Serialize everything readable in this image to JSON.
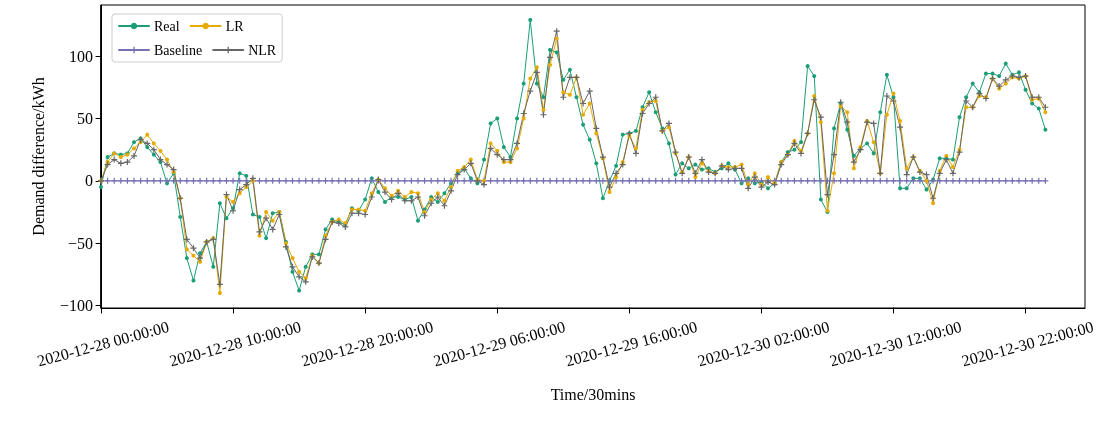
{
  "chart_data": {
    "type": "line",
    "xlabel": "Time/30mins",
    "ylabel": "Demand difference/kWh",
    "x": [
      "2020-12-28T00:00",
      "2020-12-28T00:30",
      "2020-12-28T01:00",
      "2020-12-28T01:30",
      "2020-12-28T02:00",
      "2020-12-28T02:30",
      "2020-12-28T03:00",
      "2020-12-28T03:30",
      "2020-12-28T04:00",
      "2020-12-28T04:30",
      "2020-12-28T05:00",
      "2020-12-28T05:30",
      "2020-12-28T06:00",
      "2020-12-28T06:30",
      "2020-12-28T07:00",
      "2020-12-28T07:30",
      "2020-12-28T08:00",
      "2020-12-28T08:30",
      "2020-12-28T09:00",
      "2020-12-28T09:30",
      "2020-12-28T10:00",
      "2020-12-28T10:30",
      "2020-12-28T11:00",
      "2020-12-28T11:30",
      "2020-12-28T12:00",
      "2020-12-28T12:30",
      "2020-12-28T13:00",
      "2020-12-28T13:30",
      "2020-12-28T14:00",
      "2020-12-28T14:30",
      "2020-12-28T15:00",
      "2020-12-28T15:30",
      "2020-12-28T16:00",
      "2020-12-28T16:30",
      "2020-12-28T17:00",
      "2020-12-28T17:30",
      "2020-12-28T18:00",
      "2020-12-28T18:30",
      "2020-12-28T19:00",
      "2020-12-28T19:30",
      "2020-12-28T20:00",
      "2020-12-28T20:30",
      "2020-12-28T21:00",
      "2020-12-28T21:30",
      "2020-12-28T22:00",
      "2020-12-28T22:30",
      "2020-12-28T23:00",
      "2020-12-28T23:30",
      "2020-12-29T00:00",
      "2020-12-29T00:30",
      "2020-12-29T01:00",
      "2020-12-29T01:30",
      "2020-12-29T02:00",
      "2020-12-29T02:30",
      "2020-12-29T03:00",
      "2020-12-29T03:30",
      "2020-12-29T04:00",
      "2020-12-29T04:30",
      "2020-12-29T05:00",
      "2020-12-29T05:30",
      "2020-12-29T06:00",
      "2020-12-29T06:30",
      "2020-12-29T07:00",
      "2020-12-29T07:30",
      "2020-12-29T08:00",
      "2020-12-29T08:30",
      "2020-12-29T09:00",
      "2020-12-29T09:30",
      "2020-12-29T10:00",
      "2020-12-29T10:30",
      "2020-12-29T11:00",
      "2020-12-29T11:30",
      "2020-12-29T12:00",
      "2020-12-29T12:30",
      "2020-12-29T13:00",
      "2020-12-29T13:30",
      "2020-12-29T14:00",
      "2020-12-29T14:30",
      "2020-12-29T15:00",
      "2020-12-29T15:30",
      "2020-12-29T16:00",
      "2020-12-29T16:30",
      "2020-12-29T17:00",
      "2020-12-29T17:30",
      "2020-12-29T18:00",
      "2020-12-29T18:30",
      "2020-12-29T19:00",
      "2020-12-29T19:30",
      "2020-12-29T20:00",
      "2020-12-29T20:30",
      "2020-12-29T21:00",
      "2020-12-29T21:30",
      "2020-12-29T22:00",
      "2020-12-29T22:30",
      "2020-12-29T23:00",
      "2020-12-29T23:30",
      "2020-12-30T00:00",
      "2020-12-30T00:30",
      "2020-12-30T01:00",
      "2020-12-30T01:30",
      "2020-12-30T02:00",
      "2020-12-30T02:30",
      "2020-12-30T03:00",
      "2020-12-30T03:30",
      "2020-12-30T04:00",
      "2020-12-30T04:30",
      "2020-12-30T05:00",
      "2020-12-30T05:30",
      "2020-12-30T06:00",
      "2020-12-30T06:30",
      "2020-12-30T07:00",
      "2020-12-30T07:30",
      "2020-12-30T08:00",
      "2020-12-30T08:30",
      "2020-12-30T09:00",
      "2020-12-30T09:30",
      "2020-12-30T10:00",
      "2020-12-30T10:30",
      "2020-12-30T11:00",
      "2020-12-30T11:30",
      "2020-12-30T12:00",
      "2020-12-30T12:30",
      "2020-12-30T13:00",
      "2020-12-30T13:30",
      "2020-12-30T14:00",
      "2020-12-30T14:30",
      "2020-12-30T15:00",
      "2020-12-30T15:30",
      "2020-12-30T16:00",
      "2020-12-30T16:30",
      "2020-12-30T17:00",
      "2020-12-30T17:30",
      "2020-12-30T18:00",
      "2020-12-30T18:30",
      "2020-12-30T19:00",
      "2020-12-30T19:30",
      "2020-12-30T20:00",
      "2020-12-30T20:30",
      "2020-12-30T21:00",
      "2020-12-30T21:30",
      "2020-12-30T22:00",
      "2020-12-30T22:30",
      "2020-12-30T23:00",
      "2020-12-30T23:30"
    ],
    "series": [
      {
        "name": "Real",
        "color": "#1b9e77",
        "marker": "circle",
        "values": [
          -5,
          19,
          22,
          21,
          22,
          31,
          34,
          27,
          21,
          15,
          -2,
          6,
          -29,
          -62,
          -80,
          -58,
          -49,
          -69,
          -18,
          -30,
          -22,
          6,
          4,
          -27,
          -29,
          -46,
          -26,
          -25,
          -49,
          -73,
          -88,
          -69,
          -59,
          -59,
          -39,
          -31,
          -33,
          -35,
          -22,
          -24,
          -15,
          2,
          -9,
          -17,
          -13,
          -13,
          -15,
          -13,
          -32,
          -23,
          -13,
          -17,
          -10,
          -2,
          6,
          10,
          2,
          -2,
          17,
          46,
          50,
          27,
          19,
          50,
          78,
          129,
          78,
          67,
          105,
          103,
          81,
          89,
          67,
          45,
          33,
          14,
          -14,
          0,
          12,
          37,
          38,
          40,
          59,
          71,
          55,
          42,
          30,
          5,
          14,
          10,
          13,
          9,
          10,
          7,
          10,
          14,
          9,
          -2,
          2,
          -2,
          -1,
          -6,
          -2,
          15,
          23,
          25,
          31,
          92,
          84,
          -15,
          -25,
          42,
          62,
          41,
          20,
          26,
          30,
          22,
          55,
          85,
          67,
          -6,
          -6,
          2,
          2,
          -7,
          1,
          18,
          18,
          17,
          51,
          67,
          78,
          71,
          86,
          86,
          84,
          94,
          85,
          87,
          73,
          62,
          58,
          41
        ]
      },
      {
        "name": "Baseline",
        "color": "#7570b3",
        "marker": "cross",
        "values": [
          0,
          0,
          0,
          0,
          0,
          0,
          0,
          0,
          0,
          0,
          0,
          0,
          0,
          0,
          0,
          0,
          0,
          0,
          0,
          0,
          0,
          0,
          0,
          0,
          0,
          0,
          0,
          0,
          0,
          0,
          0,
          0,
          0,
          0,
          0,
          0,
          0,
          0,
          0,
          0,
          0,
          0,
          0,
          0,
          0,
          0,
          0,
          0,
          0,
          0,
          0,
          0,
          0,
          0,
          0,
          0,
          0,
          0,
          0,
          0,
          0,
          0,
          0,
          0,
          0,
          0,
          0,
          0,
          0,
          0,
          0,
          0,
          0,
          0,
          0,
          0,
          0,
          0,
          0,
          0,
          0,
          0,
          0,
          0,
          0,
          0,
          0,
          0,
          0,
          0,
          0,
          0,
          0,
          0,
          0,
          0,
          0,
          0,
          0,
          0,
          0,
          0,
          0,
          0,
          0,
          0,
          0,
          0,
          0,
          0,
          0,
          0,
          0,
          0,
          0,
          0,
          0,
          0,
          0,
          0,
          0,
          0,
          0,
          0,
          0,
          0,
          0,
          0,
          0,
          0,
          0,
          0,
          0,
          0,
          0,
          0,
          0,
          0,
          0,
          0,
          0,
          0,
          0,
          0
        ]
      },
      {
        "name": "LR",
        "color": "#e6ab02",
        "marker": "circle",
        "values": [
          0,
          15,
          22,
          19,
          21,
          26,
          31,
          37,
          30,
          24,
          17,
          7,
          -14,
          -55,
          -60,
          -65,
          -49,
          -46,
          -90,
          -13,
          -17,
          -10,
          -5,
          0,
          -44,
          -25,
          -32,
          -25,
          -50,
          -62,
          -73,
          -78,
          -60,
          -66,
          -44,
          -33,
          -31,
          -34,
          -23,
          -23,
          -24,
          -10,
          1,
          -6,
          -12,
          -8,
          -13,
          -9,
          -10,
          -25,
          -15,
          -10,
          -16,
          -5,
          8,
          11,
          17,
          1,
          0,
          30,
          24,
          15,
          15,
          26,
          50,
          82,
          91,
          57,
          93,
          114,
          71,
          69,
          83,
          53,
          62,
          38,
          18,
          -9,
          3,
          15,
          36,
          26,
          57,
          63,
          64,
          40,
          43,
          22,
          7,
          19,
          3,
          14,
          8,
          6,
          12,
          11,
          11,
          13,
          -3,
          6,
          -3,
          3,
          -2,
          15,
          21,
          32,
          24,
          38,
          68,
          47,
          -24,
          6,
          60,
          55,
          10,
          27,
          48,
          31,
          6,
          53,
          70,
          48,
          10,
          19,
          8,
          0,
          -18,
          8,
          20,
          11,
          25,
          59,
          59,
          68,
          67,
          82,
          74,
          78,
          83,
          82,
          84,
          65,
          66,
          55
        ]
      },
      {
        "name": "NLR",
        "color": "#666666",
        "marker": "cross",
        "values": [
          0,
          13,
          17,
          14,
          15,
          20,
          33,
          30,
          25,
          17,
          13,
          9,
          -14,
          -47,
          -54,
          -62,
          -49,
          -47,
          -83,
          -11,
          -24,
          -7,
          -3,
          2,
          -41,
          -30,
          -39,
          -27,
          -53,
          -69,
          -77,
          -81,
          -61,
          -66,
          -47,
          -33,
          -34,
          -37,
          -26,
          -26,
          -27,
          -13,
          1,
          -9,
          -15,
          -10,
          -16,
          -16,
          -13,
          -28,
          -18,
          -13,
          -20,
          -8,
          5,
          9,
          14,
          0,
          -3,
          26,
          21,
          17,
          17,
          30,
          54,
          72,
          87,
          53,
          99,
          120,
          67,
          83,
          83,
          62,
          72,
          42,
          19,
          -5,
          6,
          13,
          38,
          22,
          54,
          62,
          67,
          40,
          46,
          23,
          6,
          19,
          6,
          17,
          7,
          6,
          12,
          9,
          10,
          10,
          -6,
          3,
          -5,
          -1,
          -3,
          13,
          21,
          30,
          22,
          38,
          65,
          51,
          -11,
          21,
          63,
          47,
          15,
          25,
          47,
          46,
          6,
          68,
          64,
          43,
          5,
          19,
          7,
          5,
          -14,
          6,
          17,
          6,
          23,
          64,
          59,
          70,
          66,
          82,
          76,
          81,
          84,
          83,
          84,
          67,
          67,
          59
        ]
      }
    ],
    "xlim": [
      "2020-12-28T00:00",
      "2020-12-31T02:30"
    ],
    "xticks": [
      {
        "value": "2020-12-28T00:00",
        "label": "2020-12-28 00:00:00"
      },
      {
        "value": "2020-12-28T10:00",
        "label": "2020-12-28 10:00:00"
      },
      {
        "value": "2020-12-28T20:00",
        "label": "2020-12-28 20:00:00"
      },
      {
        "value": "2020-12-29T06:00",
        "label": "2020-12-29 06:00:00"
      },
      {
        "value": "2020-12-29T16:00",
        "label": "2020-12-29 16:00:00"
      },
      {
        "value": "2020-12-30T02:00",
        "label": "2020-12-30 02:00:00"
      },
      {
        "value": "2020-12-30T12:00",
        "label": "2020-12-30 12:00:00"
      },
      {
        "value": "2020-12-30T22:00",
        "label": "2020-12-30 22:00:00"
      }
    ],
    "ylim": [
      -102,
      141
    ],
    "yticks": [
      -100,
      -50,
      0,
      50,
      100
    ],
    "grid": false,
    "legend": "top left",
    "line_style": "solid"
  }
}
